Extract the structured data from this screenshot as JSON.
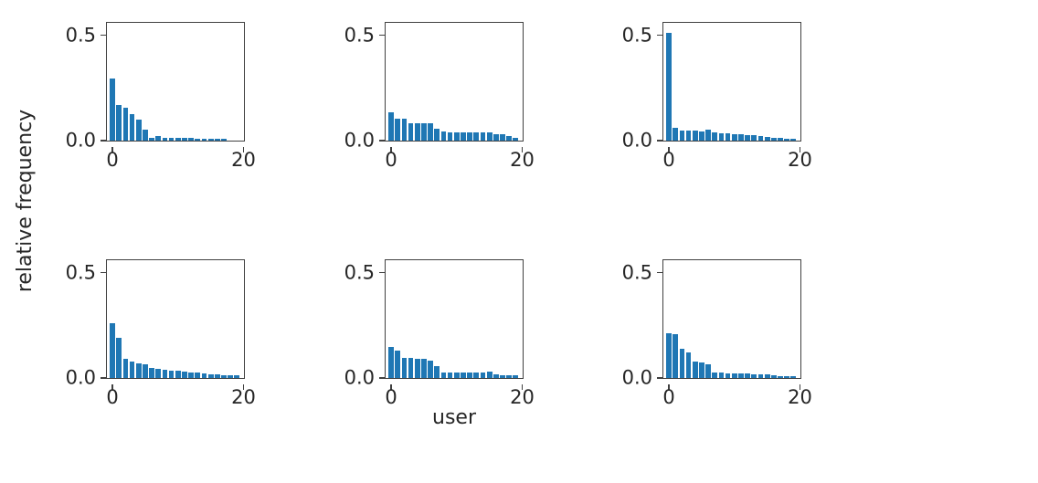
{
  "figure": {
    "ylabel": "relative frequency",
    "xlabel": "user",
    "bar_color": "#1f77b4",
    "spine_color": "#404040",
    "text_color": "#262626",
    "background": "#ffffff"
  },
  "chart_data": {
    "type": "bar",
    "description": "2x3 grid of histograms sharing axes; relative frequency per user index",
    "x": [
      0,
      1,
      2,
      3,
      4,
      5,
      6,
      7,
      8,
      9,
      10,
      11,
      12,
      13,
      14,
      15,
      16,
      17,
      18,
      19
    ],
    "xlabel": "user",
    "ylabel": "relative frequency",
    "xtick_values": [
      0,
      20
    ],
    "xtick_labels": [
      "0",
      "20"
    ],
    "ytick_values": [
      0.0,
      0.5
    ],
    "ytick_labels": [
      "0.0",
      "0.5"
    ],
    "xlim": [
      -0.85,
      20.35
    ],
    "ylim": [
      0,
      0.565
    ],
    "bar_width": 0.8,
    "grid": false,
    "legend": false,
    "subplots": [
      {
        "name": "top-left",
        "values": [
          0.295,
          0.17,
          0.155,
          0.125,
          0.1,
          0.05,
          0.015,
          0.022,
          0.015,
          0.015,
          0.014,
          0.012,
          0.012,
          0.01,
          0.01,
          0.01,
          0.008,
          0.008,
          0,
          0
        ]
      },
      {
        "name": "top-center",
        "values": [
          0.135,
          0.105,
          0.105,
          0.082,
          0.08,
          0.08,
          0.08,
          0.055,
          0.042,
          0.04,
          0.04,
          0.04,
          0.04,
          0.04,
          0.04,
          0.038,
          0.032,
          0.03,
          0.02,
          0.012
        ]
      },
      {
        "name": "top-right",
        "values": [
          0.51,
          0.062,
          0.048,
          0.046,
          0.046,
          0.045,
          0.05,
          0.04,
          0.036,
          0.034,
          0.03,
          0.03,
          0.026,
          0.024,
          0.02,
          0.016,
          0.013,
          0.012,
          0.01,
          0.008
        ]
      },
      {
        "name": "bottom-left",
        "values": [
          0.26,
          0.19,
          0.09,
          0.076,
          0.068,
          0.064,
          0.047,
          0.042,
          0.04,
          0.036,
          0.033,
          0.029,
          0.027,
          0.024,
          0.022,
          0.019,
          0.017,
          0.015,
          0.012,
          0.012
        ]
      },
      {
        "name": "bottom-center",
        "values": [
          0.147,
          0.13,
          0.095,
          0.093,
          0.092,
          0.09,
          0.084,
          0.056,
          0.028,
          0.027,
          0.027,
          0.026,
          0.026,
          0.026,
          0.026,
          0.03,
          0.016,
          0.015,
          0.015,
          0.014
        ]
      },
      {
        "name": "bottom-right",
        "values": [
          0.21,
          0.208,
          0.14,
          0.12,
          0.078,
          0.072,
          0.065,
          0.028,
          0.024,
          0.022,
          0.022,
          0.02,
          0.02,
          0.018,
          0.018,
          0.016,
          0.014,
          0.01,
          0.008,
          0.008
        ]
      }
    ]
  }
}
